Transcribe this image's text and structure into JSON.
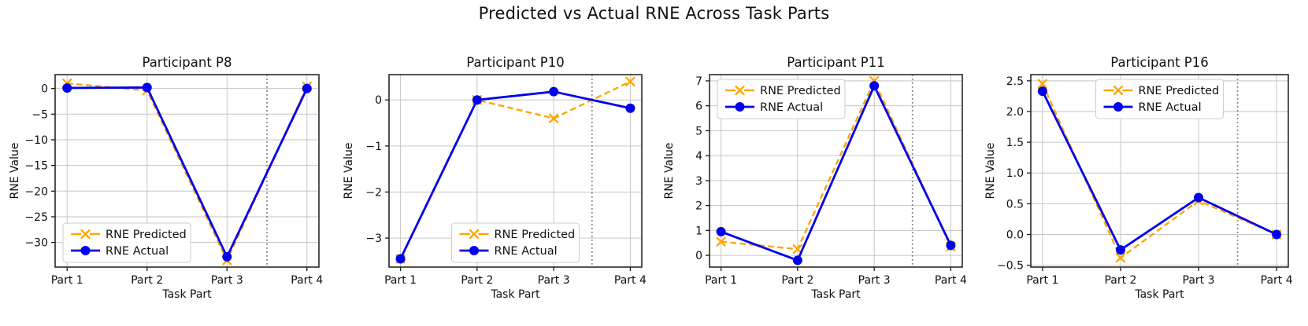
{
  "title": "Predicted vs Actual RNE Across Task Parts",
  "palette": {
    "predicted_color": "#FFA500",
    "actual_color": "#0000EE",
    "grid_color": "#c6c6c6",
    "divider_color": "#808080",
    "frame_color": "#1a1a1a",
    "legend_border": "#cccccc"
  },
  "chart_data": [
    {
      "type": "line",
      "title": "Participant P8",
      "xlabel": "Task Part",
      "ylabel": "RNE Value",
      "categories": [
        "Part 1",
        "Part 2",
        "Part 3",
        "Part 4"
      ],
      "x": [
        1,
        2,
        3,
        4
      ],
      "series": [
        {
          "name": "RNE Predicted",
          "values": [
            1.0,
            -0.4,
            -33.5,
            0.4
          ],
          "color": "#FFA500",
          "line": "dashed",
          "marker": "x"
        },
        {
          "name": "RNE Actual",
          "values": [
            0.1,
            0.2,
            -32.8,
            0.0
          ],
          "color": "#0000EE",
          "line": "solid",
          "marker": "circle"
        }
      ],
      "yticks": [
        0,
        -5,
        -10,
        -15,
        -20,
        -25,
        -30
      ],
      "ylim": [
        -34.8,
        2.7
      ],
      "xlim": [
        0.85,
        4.15
      ],
      "divider_x": 3.5,
      "grid": true,
      "legend_pos": "lower left"
    },
    {
      "type": "line",
      "title": "Participant P10",
      "xlabel": "Task Part",
      "ylabel": "RNE Value",
      "categories": [
        "Part 1",
        "Part 2",
        "Part 3",
        "Part 4"
      ],
      "x": [
        1,
        2,
        3,
        4
      ],
      "series": [
        {
          "name": "RNE Predicted",
          "values": [
            -3.45,
            0.0,
            -0.4,
            0.4
          ],
          "color": "#FFA500",
          "line": "dashed",
          "marker": "x"
        },
        {
          "name": "RNE Actual",
          "values": [
            -3.45,
            0.0,
            0.18,
            -0.18
          ],
          "color": "#0000EE",
          "line": "solid",
          "marker": "circle"
        }
      ],
      "yticks": [
        0,
        -1,
        -2,
        -3
      ],
      "ylim": [
        -3.63,
        0.55
      ],
      "xlim": [
        0.85,
        4.15
      ],
      "divider_x": 3.5,
      "grid": true,
      "legend_pos": "lower center"
    },
    {
      "type": "line",
      "title": "Participant P11",
      "xlabel": "Task Part",
      "ylabel": "RNE Value",
      "categories": [
        "Part 1",
        "Part 2",
        "Part 3",
        "Part 4"
      ],
      "x": [
        1,
        2,
        3,
        4
      ],
      "series": [
        {
          "name": "RNE Predicted",
          "values": [
            0.55,
            0.25,
            7.0,
            0.35
          ],
          "color": "#FFA500",
          "line": "dashed",
          "marker": "x"
        },
        {
          "name": "RNE Actual",
          "values": [
            0.95,
            -0.2,
            6.8,
            0.4
          ],
          "color": "#0000EE",
          "line": "solid",
          "marker": "circle"
        }
      ],
      "yticks": [
        0,
        1,
        2,
        3,
        4,
        5,
        6,
        7
      ],
      "ylim": [
        -0.47,
        7.25
      ],
      "xlim": [
        0.85,
        4.15
      ],
      "divider_x": 3.5,
      "grid": true,
      "legend_pos": "upper left"
    },
    {
      "type": "line",
      "title": "Participant P16",
      "xlabel": "Task Part",
      "ylabel": "RNE Value",
      "categories": [
        "Part 1",
        "Part 2",
        "Part 3",
        "Part 4"
      ],
      "x": [
        1,
        2,
        3,
        4
      ],
      "series": [
        {
          "name": "RNE Predicted",
          "values": [
            2.45,
            -0.38,
            0.55,
            0.0
          ],
          "color": "#FFA500",
          "line": "dashed",
          "marker": "x"
        },
        {
          "name": "RNE Actual",
          "values": [
            2.33,
            -0.25,
            0.6,
            0.0
          ],
          "color": "#0000EE",
          "line": "solid",
          "marker": "circle"
        }
      ],
      "yticks": [
        -0.5,
        0.0,
        0.5,
        1.0,
        1.5,
        2.0,
        2.5
      ],
      "ylim": [
        -0.53,
        2.6
      ],
      "xlim": [
        0.85,
        4.15
      ],
      "divider_x": 3.5,
      "grid": true,
      "legend_pos": "upper center"
    }
  ]
}
